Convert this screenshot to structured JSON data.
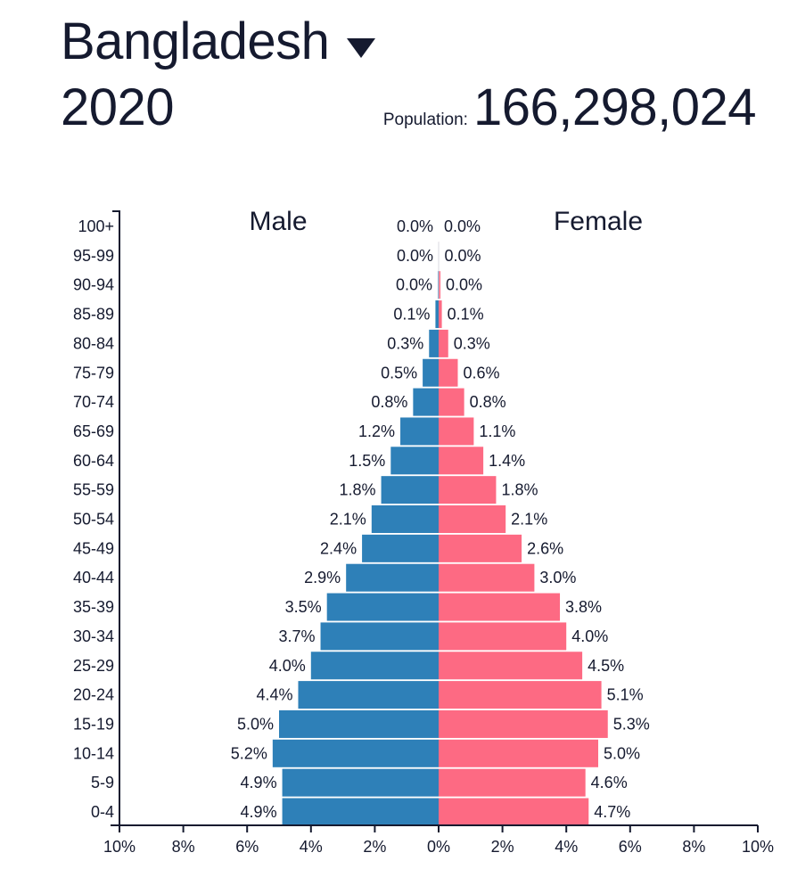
{
  "header": {
    "country": "Bangladesh",
    "dropdown_icon": "caret-down-icon",
    "year": "2020",
    "population_label": "Population:",
    "population_value": "166,298,024"
  },
  "chart_data": {
    "type": "bar",
    "subtype": "population-pyramid",
    "categories": [
      "100+",
      "95-99",
      "90-94",
      "85-89",
      "80-84",
      "75-79",
      "70-74",
      "65-69",
      "60-64",
      "55-59",
      "50-54",
      "45-49",
      "40-44",
      "35-39",
      "30-34",
      "25-29",
      "20-24",
      "15-19",
      "10-14",
      "5-9",
      "0-4"
    ],
    "series": [
      {
        "name": "Male",
        "color": "#2e80b8",
        "values": [
          0.0,
          0.0,
          0.0,
          0.1,
          0.3,
          0.5,
          0.8,
          1.2,
          1.5,
          1.8,
          2.1,
          2.4,
          2.9,
          3.5,
          3.7,
          4.0,
          4.4,
          5.0,
          5.2,
          4.9,
          4.9
        ],
        "labels": [
          "0.0%",
          "0.0%",
          "0.0%",
          "0.1%",
          "0.3%",
          "0.5%",
          "0.8%",
          "1.2%",
          "1.5%",
          "1.8%",
          "2.1%",
          "2.4%",
          "2.9%",
          "3.5%",
          "3.7%",
          "4.0%",
          "4.4%",
          "5.0%",
          "5.2%",
          "4.9%",
          "4.9%"
        ]
      },
      {
        "name": "Female",
        "color": "#fd6a83",
        "values": [
          0.0,
          0.0,
          0.0,
          0.1,
          0.3,
          0.6,
          0.8,
          1.1,
          1.4,
          1.8,
          2.1,
          2.6,
          3.0,
          3.8,
          4.0,
          4.5,
          5.1,
          5.3,
          5.0,
          4.6,
          4.7
        ],
        "labels": [
          "0.0%",
          "0.0%",
          "0.0%",
          "0.1%",
          "0.3%",
          "0.6%",
          "0.8%",
          "1.1%",
          "1.4%",
          "1.8%",
          "2.1%",
          "2.6%",
          "3.0%",
          "3.8%",
          "4.0%",
          "4.5%",
          "5.1%",
          "5.3%",
          "5.0%",
          "4.6%",
          "4.7%"
        ]
      }
    ],
    "xticks": [
      "10%",
      "8%",
      "6%",
      "4%",
      "2%",
      "0%",
      "2%",
      "4%",
      "6%",
      "8%",
      "10%"
    ],
    "xtick_values": [
      -10,
      -8,
      -6,
      -4,
      -2,
      0,
      2,
      4,
      6,
      8,
      10
    ],
    "xlim": [
      -10,
      10
    ],
    "title": "",
    "xlabel": "",
    "ylabel": "",
    "grid": false,
    "legend": "top"
  }
}
